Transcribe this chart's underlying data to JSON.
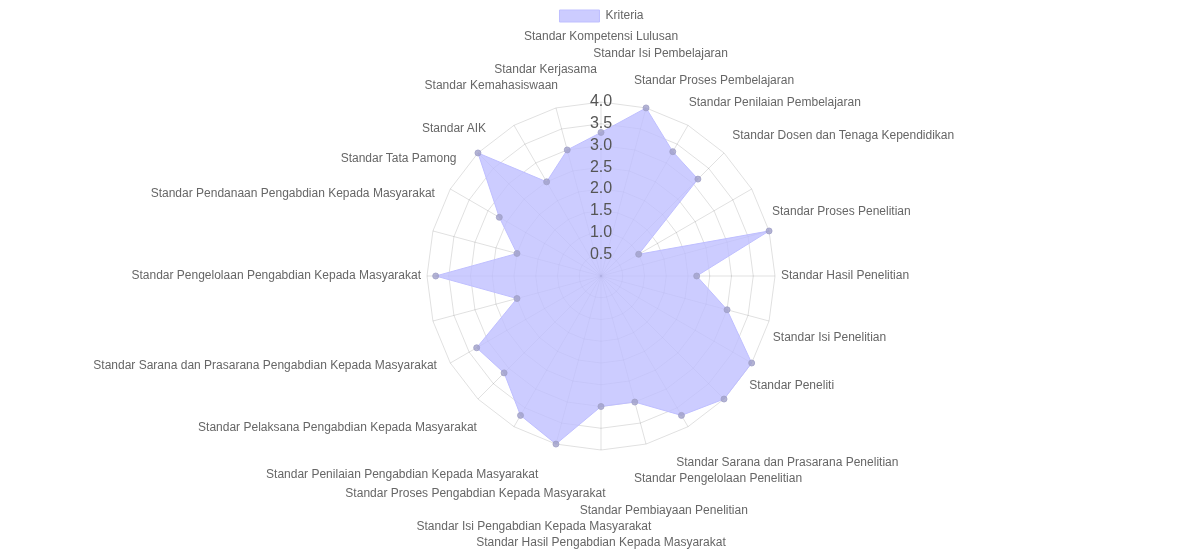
{
  "chart_data": {
    "type": "radar",
    "categories": [
      "Standar Kompetensi Lulusan",
      "Standar Isi Pembelajaran",
      "Standar Proses Pembelajaran",
      "Standar Penilaian Pembelajaran",
      "Standar Dosen dan Tenaga Kependidikan",
      "Standar Proses Penelitian",
      "Standar Hasil Penelitian",
      "Standar Isi Penelitian",
      "Standar Peneliti",
      "Standar Sarana dan Prasarana Penelitian",
      "Standar Pengelolaan Penelitian",
      "Standar Pembiayaan Penelitian",
      "Standar Hasil Pengabdian Kepada Masyarakat",
      "Standar Isi Pengabdian Kepada Masyarakat",
      "Standar Proses Pengabdian Kepada Masyarakat",
      "Standar Penilaian Pengabdian Kepada Masyarakat",
      "Standar Pelaksana Pengabdian Kepada Masyarakat",
      "Standar Sarana dan Prasarana Pengabdian Kepada Masyarakat",
      "Standar Pengelolaan Pengabdian Kepada Masyarakat",
      "Standar Pendanaan Pengabdian Kepada Masyarakat",
      "Standar Tata Pamong",
      "Standar AIK",
      "Standar Kemahasiswaan",
      "Standar Kerjasama"
    ],
    "series": [
      {
        "name": "Kriteria",
        "color": "#bfbfff",
        "values": [
          3.3,
          4.0,
          3.3,
          3.15,
          1.0,
          4.0,
          2.2,
          3.0,
          4.0,
          4.0,
          3.7,
          3.0,
          3.0,
          4.0,
          3.7,
          3.15,
          3.3,
          2.0,
          3.8,
          2.0,
          2.7,
          4.0,
          2.5,
          3.0
        ]
      }
    ],
    "ylim": [
      0,
      4
    ],
    "yticks": [
      {
        "value": 0.5,
        "label": "0.5"
      },
      {
        "value": 1,
        "label": "1.0"
      },
      {
        "value": 1.5,
        "label": "1.5"
      },
      {
        "value": 2,
        "label": "2.0"
      },
      {
        "value": 2.5,
        "label": "2.5"
      },
      {
        "value": 3,
        "label": "3.0"
      },
      {
        "value": 3.5,
        "label": "3.5"
      },
      {
        "value": 4,
        "label": "4.0"
      }
    ],
    "grid": true,
    "legend": "top",
    "marker": "circle"
  }
}
